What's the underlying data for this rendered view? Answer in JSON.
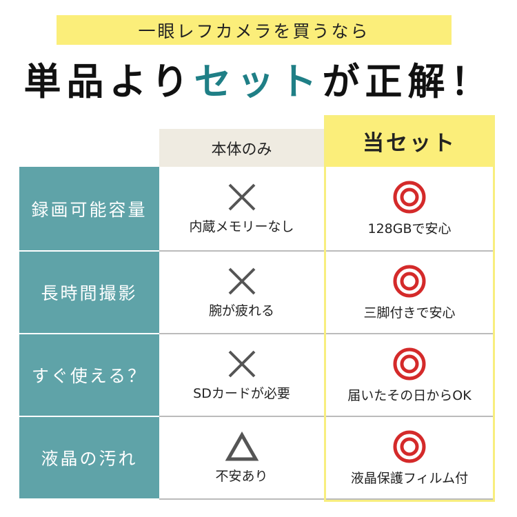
{
  "banner": "一眼レフカメラを買うなら",
  "headline": {
    "before": "単品より",
    "accent": "セット",
    "after": "が正解！"
  },
  "colors": {
    "teal": "#5fa3a8",
    "accent_text": "#1f7f86",
    "yellow": "#fbee7a",
    "beige": "#efebe1",
    "red": "#d42a2a",
    "gray_mark": "#555555"
  },
  "table": {
    "headers": [
      "本体のみ",
      "当セット"
    ],
    "rows": [
      {
        "label": "録画可能容量",
        "body_mark": "cross-icon",
        "body_text": "内蔵メモリーなし",
        "set_mark": "double-circle-icon",
        "set_text": "128GBで安心"
      },
      {
        "label": "長時間撮影",
        "body_mark": "cross-icon",
        "body_text": "腕が疲れる",
        "set_mark": "double-circle-icon",
        "set_text": "三脚付きで安心"
      },
      {
        "label": "すぐ使える？",
        "body_mark": "cross-icon",
        "body_text": "SDカードが必要",
        "set_mark": "double-circle-icon",
        "set_text": "届いたその日からOK"
      },
      {
        "label": "液晶の汚れ",
        "body_mark": "triangle-icon",
        "body_text": "不安あり",
        "set_mark": "double-circle-icon",
        "set_text": "液晶保護フィルム付"
      }
    ]
  }
}
